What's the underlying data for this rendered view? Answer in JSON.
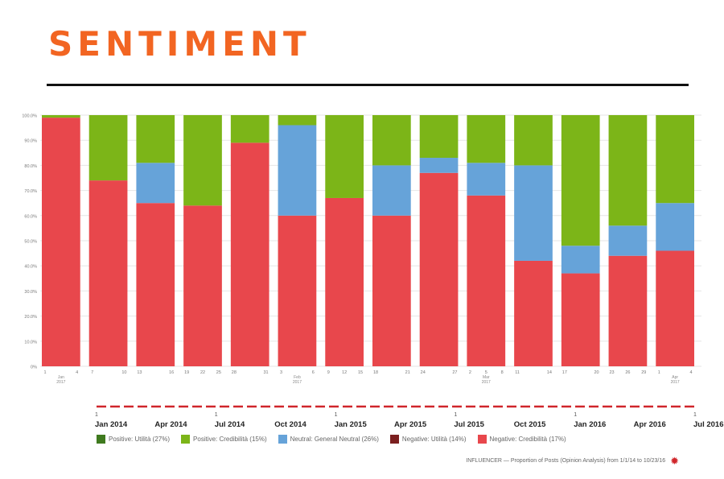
{
  "title": "SENTIMENT",
  "chart_data": {
    "type": "bar",
    "stacked": true,
    "ylim": [
      0,
      100
    ],
    "y_ticks": [
      "0%",
      "10.0%",
      "20.0%",
      "30.0%",
      "40.0%",
      "50.0%",
      "60.0%",
      "70.0%",
      "80.0%",
      "90.0%",
      "100.0%"
    ],
    "categories": [
      "1",
      "2",
      "3",
      "4",
      "5",
      "6",
      "7",
      "8",
      "9",
      "10",
      "11",
      "12",
      "13",
      "14"
    ],
    "series": [
      {
        "name": "Negative: Credibilità (17%)",
        "color": "#e8474c",
        "values": [
          99,
          74,
          65,
          64,
          89,
          60,
          67,
          60,
          77,
          68,
          42,
          37,
          44,
          46
        ]
      },
      {
        "name": "Negative: Utilità (14%)",
        "color": "#7b1f1f",
        "values": [
          0,
          0,
          0,
          0,
          0,
          0,
          0,
          0,
          0,
          0,
          0,
          0,
          0,
          0
        ]
      },
      {
        "name": "Neutral: General Neutral (26%)",
        "color": "#66a3d9",
        "values": [
          0,
          0,
          16,
          0,
          0,
          36,
          0,
          20,
          6,
          13,
          38,
          11,
          12,
          19
        ]
      },
      {
        "name": "Positive: Credibilità (15%)",
        "color": "#7cb518",
        "values": [
          1,
          26,
          19,
          36,
          11,
          4,
          33,
          20,
          17,
          19,
          20,
          52,
          44,
          35
        ]
      },
      {
        "name": "Positive: Utilità (27%)",
        "color": "#3f7a1f",
        "values": [
          0,
          0,
          0,
          0,
          0,
          0,
          0,
          0,
          0,
          0,
          0,
          0,
          0,
          0
        ]
      }
    ],
    "x_tick_labels": [
      [
        "1",
        "4"
      ],
      [
        "7",
        "10"
      ],
      [
        "13",
        "16"
      ],
      [
        "19",
        "22",
        "25"
      ],
      [
        "28",
        "31"
      ],
      [
        "3",
        "6"
      ],
      [
        "9",
        "12",
        "15"
      ],
      [
        "18",
        "21"
      ],
      [
        "24",
        "27"
      ],
      [
        "2",
        "5",
        "8"
      ],
      [
        "11",
        "14"
      ],
      [
        "17",
        "20"
      ],
      [
        "23",
        "26",
        "29"
      ],
      [
        "1",
        "4"
      ]
    ],
    "x_month_notes": [
      {
        "bar": 0,
        "text": "Jan 2017"
      },
      {
        "bar": 5,
        "text": "Feb 2017"
      },
      {
        "bar": 9,
        "text": "Mar 2017"
      },
      {
        "bar": 13,
        "text": "Apr 2017"
      }
    ]
  },
  "timeline": {
    "labels": [
      "Jan 2014",
      "Apr 2014",
      "Jul 2014",
      "Oct 2014",
      "Jan 2015",
      "Apr 2015",
      "Jul 2015",
      "Oct 2015",
      "Jan 2016",
      "Apr 2016",
      "Jul 2016"
    ],
    "day_markers": [
      {
        "label_index": 0,
        "text": "1"
      },
      {
        "label_index": 2,
        "text": "1"
      },
      {
        "label_index": 4,
        "text": "1"
      },
      {
        "label_index": 6,
        "text": "1"
      },
      {
        "label_index": 8,
        "text": "1"
      },
      {
        "label_index": 10,
        "text": "1"
      }
    ]
  },
  "legend": [
    {
      "label": "Positive: Utilità (27%)",
      "color": "#3f7a1f"
    },
    {
      "label": "Positive: Credibilità (15%)",
      "color": "#7cb518"
    },
    {
      "label": "Neutral: General Neutral (26%)",
      "color": "#66a3d9"
    },
    {
      "label": "Negative: Utilità (14%)",
      "color": "#7b1f1f"
    },
    {
      "label": "Negative: Credibilità (17%)",
      "color": "#e8474c"
    }
  ],
  "footer": {
    "text": "INFLUENCER — Proportion of Posts (Opinion Analysis) from 1/1/14 to 10/23/16",
    "icon": "gear-icon"
  }
}
